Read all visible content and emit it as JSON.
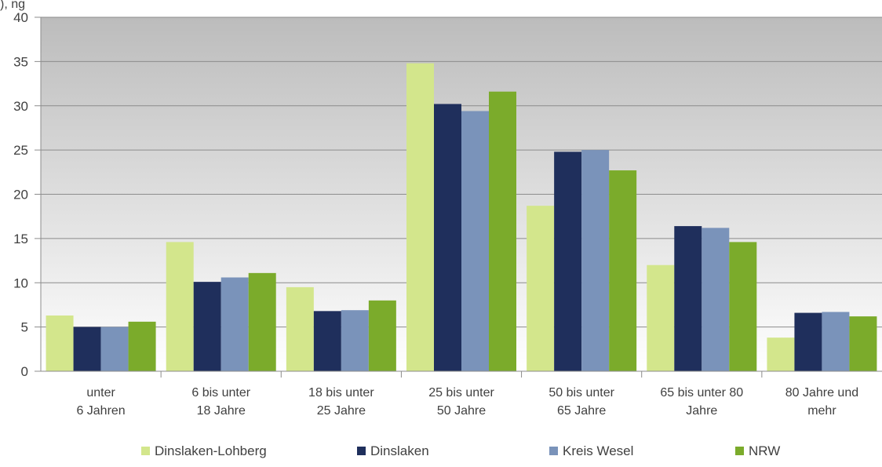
{
  "corner_fragment": "), ng",
  "chart_data": {
    "type": "bar",
    "title": "",
    "xlabel": "",
    "ylabel": "",
    "ylim": [
      0,
      40
    ],
    "yticks": [
      0,
      5,
      10,
      15,
      20,
      25,
      30,
      35,
      40
    ],
    "grid": true,
    "legend_position": "bottom",
    "categories": [
      [
        "unter",
        "6 Jahren"
      ],
      [
        "6 bis unter",
        "18 Jahre"
      ],
      [
        "18 bis unter",
        "25 Jahre"
      ],
      [
        "25 bis unter",
        "50 Jahre"
      ],
      [
        "50 bis unter",
        "65 Jahre"
      ],
      [
        "65 bis unter 80",
        "Jahre"
      ],
      [
        "80 Jahre und",
        "mehr"
      ]
    ],
    "series": [
      {
        "name": "Dinslaken-Lohberg",
        "color": "#d3e68c",
        "values": [
          6.3,
          14.6,
          9.5,
          34.8,
          18.7,
          12.0,
          3.8
        ]
      },
      {
        "name": "Dinslaken",
        "color": "#1f2f5c",
        "values": [
          5.0,
          10.1,
          6.8,
          30.2,
          24.8,
          16.4,
          6.6
        ]
      },
      {
        "name": "Kreis Wesel",
        "color": "#7a93ba",
        "values": [
          5.0,
          10.6,
          6.9,
          29.4,
          25.0,
          16.2,
          6.7
        ]
      },
      {
        "name": "NRW",
        "color": "#7bab2b",
        "values": [
          5.6,
          11.1,
          8.0,
          31.6,
          22.7,
          14.6,
          6.2
        ]
      }
    ]
  }
}
